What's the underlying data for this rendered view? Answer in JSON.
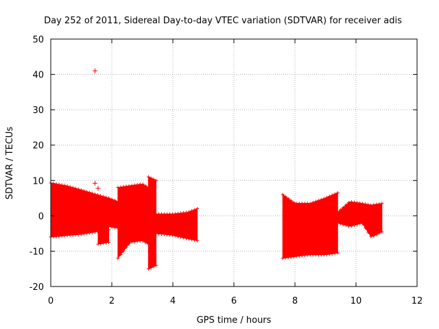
{
  "chart_data": {
    "type": "scatter",
    "title": "Day 252 of 2011, Sidereal Day-to-day VTEC variation (SDTVAR) for receiver adis",
    "xlabel": "GPS time / hours",
    "ylabel": "SDTVAR / TECUs",
    "xlim": [
      0,
      12
    ],
    "ylim": [
      -20,
      50
    ],
    "x_ticks": [
      0,
      2,
      4,
      6,
      8,
      10,
      12
    ],
    "y_ticks": [
      -20,
      -10,
      0,
      10,
      20,
      30,
      40,
      50
    ],
    "x_tick_labels": [
      "0",
      "2",
      "4",
      "6",
      "8",
      "10",
      "12"
    ],
    "y_tick_labels": [
      "-20",
      "-10",
      "0",
      "10",
      "20",
      "30",
      "40",
      "50"
    ],
    "grid": true,
    "marker": "+",
    "color": "#ff0000",
    "series": [
      {
        "name": "SDTVAR",
        "bands": [
          {
            "x": [
              0.0,
              0.5,
              1.0,
              1.5,
              1.9
            ],
            "upper": [
              9.3,
              8.5,
              7.3,
              6.0,
              5.0
            ],
            "lower": [
              -6.0,
              -5.6,
              -5.2,
              -4.5,
              -4.0
            ]
          },
          {
            "x": [
              1.55,
              1.9
            ],
            "upper": [
              -2.0,
              -2.0
            ],
            "lower": [
              -8.0,
              -7.5
            ]
          },
          {
            "x": [
              1.9,
              2.2
            ],
            "upper": [
              5.0,
              4.0
            ],
            "lower": [
              -3.0,
              -3.5
            ]
          },
          {
            "x": [
              2.2,
              2.6,
              3.0,
              3.2
            ],
            "upper": [
              8.0,
              8.5,
              9.0,
              8.0
            ],
            "lower": [
              -12.0,
              -7.5,
              -7.0,
              -8.0
            ]
          },
          {
            "x": [
              3.2,
              3.45
            ],
            "upper": [
              11.0,
              10.0
            ],
            "lower": [
              -15.0,
              -14.0
            ]
          },
          {
            "x": [
              3.45,
              4.0,
              4.5,
              4.8
            ],
            "upper": [
              0.5,
              0.5,
              1.0,
              2.0
            ],
            "lower": [
              -5.0,
              -5.5,
              -6.5,
              -7.0
            ]
          },
          {
            "x": [
              7.6,
              8.0,
              8.5,
              9.0,
              9.4
            ],
            "upper": [
              6.0,
              3.5,
              3.5,
              5.0,
              6.5
            ],
            "lower": [
              -12.0,
              -11.5,
              -11.0,
              -11.0,
              -10.5
            ]
          },
          {
            "x": [
              9.4,
              9.8,
              10.2,
              10.5,
              10.85
            ],
            "upper": [
              1.0,
              4.0,
              3.5,
              3.0,
              3.5
            ],
            "lower": [
              -2.0,
              -3.0,
              -2.0,
              -6.0,
              -4.5
            ]
          }
        ],
        "points": [
          {
            "x": 1.45,
            "y": 41.0
          },
          {
            "x": 1.45,
            "y": 9.2
          },
          {
            "x": 1.55,
            "y": 7.8
          }
        ]
      }
    ]
  }
}
